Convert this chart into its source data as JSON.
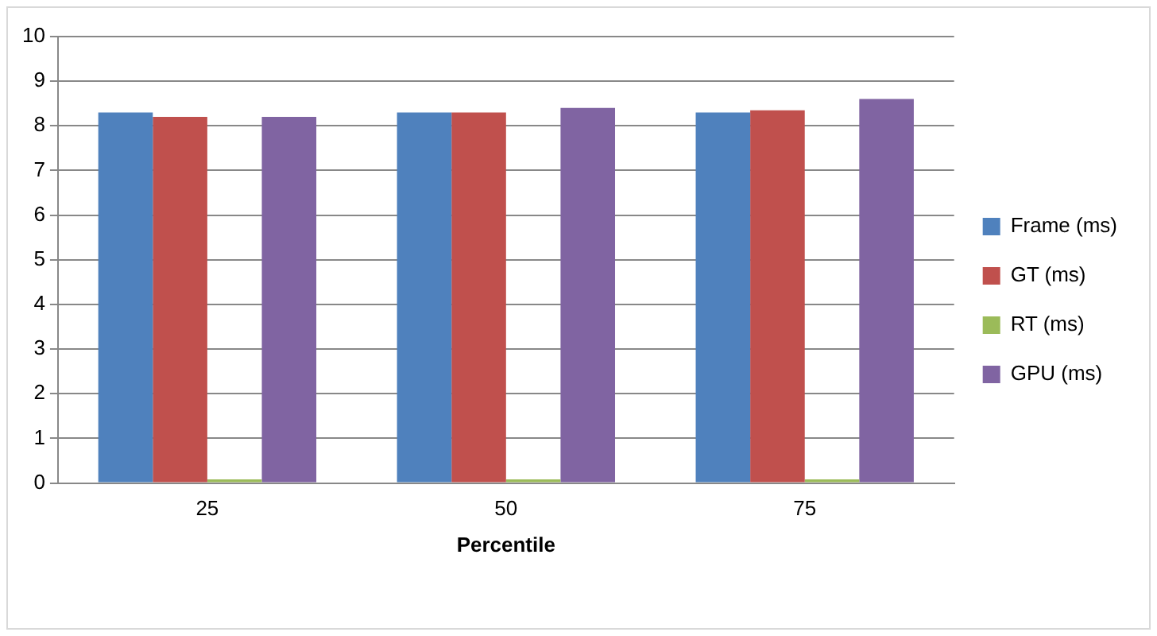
{
  "chart_data": {
    "type": "bar",
    "xlabel": "Percentile",
    "categories": [
      "25",
      "50",
      "75"
    ],
    "series": [
      {
        "name": "Frame (ms)",
        "color": "#4f81bd",
        "values": [
          8.3,
          8.3,
          8.3
        ]
      },
      {
        "name": "GT (ms)",
        "color": "#c0504d",
        "values": [
          8.2,
          8.3,
          8.35
        ]
      },
      {
        "name": "RT (ms)",
        "color": "#9bbb59",
        "values": [
          0.08,
          0.08,
          0.08
        ]
      },
      {
        "name": "GPU (ms)",
        "color": "#8064a2",
        "values": [
          8.2,
          8.4,
          8.6
        ]
      }
    ],
    "ylim": [
      0,
      10
    ],
    "yticks": [
      0,
      1,
      2,
      3,
      4,
      5,
      6,
      7,
      8,
      9,
      10
    ],
    "grid": "y",
    "legend": "right"
  }
}
